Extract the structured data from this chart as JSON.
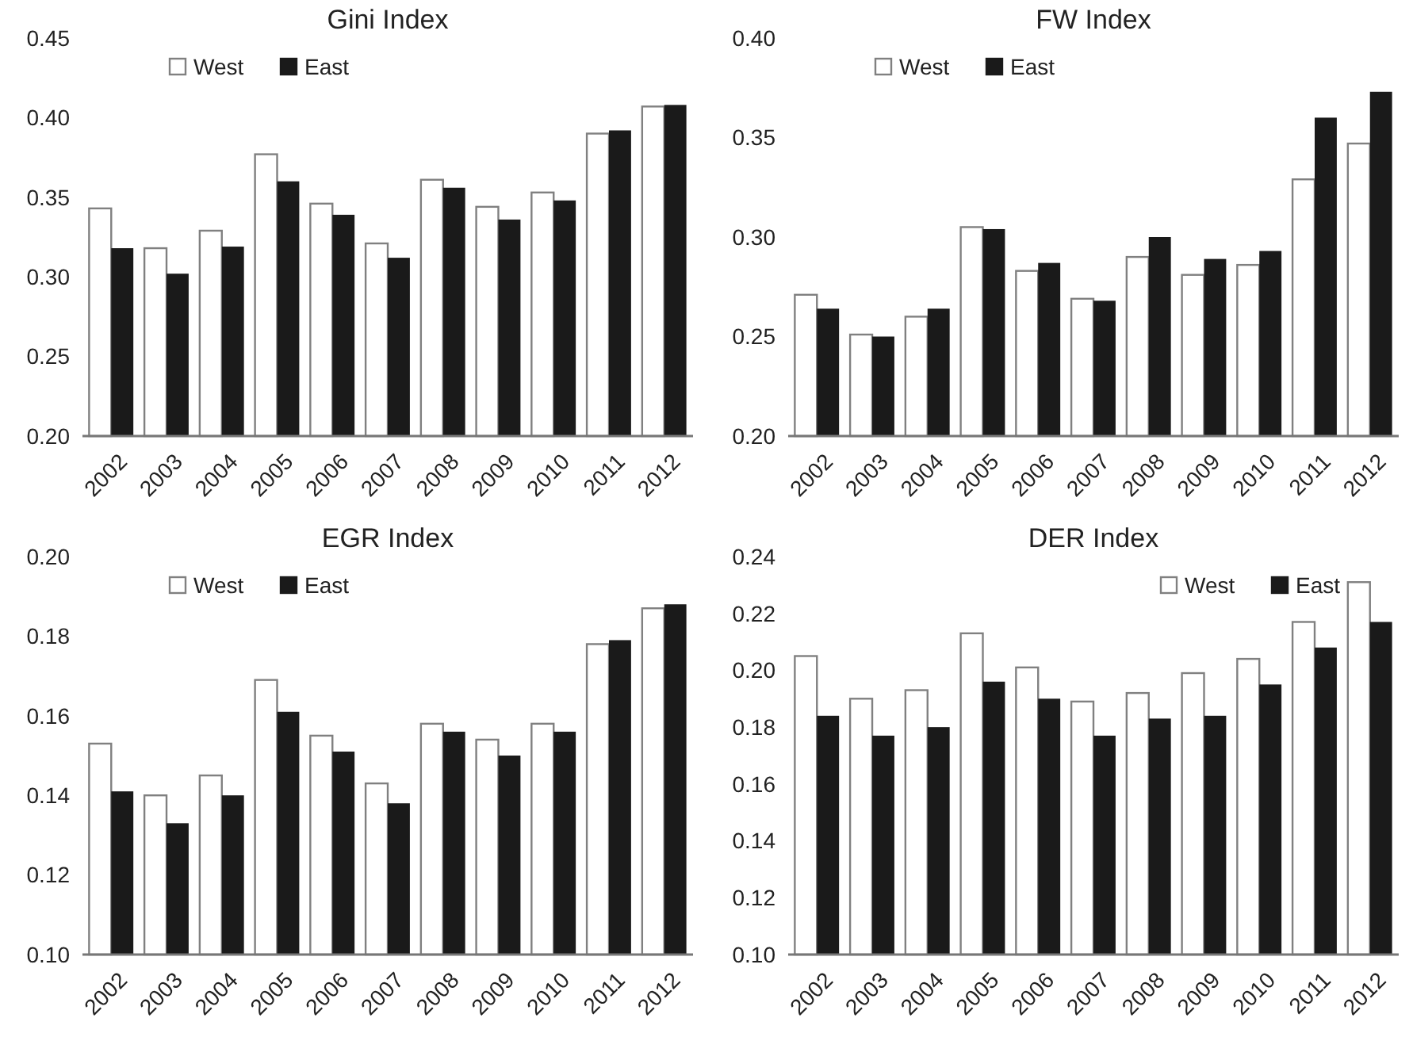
{
  "chart_data": [
    {
      "type": "bar",
      "title": "Gini Index",
      "categories": [
        "2002",
        "2003",
        "2004",
        "2005",
        "2006",
        "2007",
        "2008",
        "2009",
        "2010",
        "2011",
        "2012"
      ],
      "series": [
        {
          "name": "West",
          "color": "#ffffff",
          "values": [
            0.343,
            0.318,
            0.329,
            0.377,
            0.346,
            0.321,
            0.361,
            0.344,
            0.353,
            0.39,
            0.407
          ]
        },
        {
          "name": "East",
          "color": "#1a1a1a",
          "values": [
            0.318,
            0.302,
            0.319,
            0.36,
            0.339,
            0.312,
            0.356,
            0.336,
            0.348,
            0.392,
            0.408
          ]
        }
      ],
      "ylim": [
        0.2,
        0.45
      ],
      "yticks": [
        {
          "value": 0.2,
          "label": "0.20"
        },
        {
          "value": 0.25,
          "label": "0.25"
        },
        {
          "value": 0.3,
          "label": "0.30"
        },
        {
          "value": 0.35,
          "label": "0.35"
        },
        {
          "value": 0.4,
          "label": "0.40"
        },
        {
          "value": 0.45,
          "label": "0.45"
        }
      ],
      "grid": false,
      "legend": "top left"
    },
    {
      "type": "bar",
      "title": "FW Index",
      "categories": [
        "2002",
        "2003",
        "2004",
        "2005",
        "2006",
        "2007",
        "2008",
        "2009",
        "2010",
        "2011",
        "2012"
      ],
      "series": [
        {
          "name": "West",
          "color": "#ffffff",
          "values": [
            0.271,
            0.251,
            0.26,
            0.305,
            0.283,
            0.269,
            0.29,
            0.281,
            0.286,
            0.329,
            0.347
          ]
        },
        {
          "name": "East",
          "color": "#1a1a1a",
          "values": [
            0.264,
            0.25,
            0.264,
            0.304,
            0.287,
            0.268,
            0.3,
            0.289,
            0.293,
            0.36,
            0.373
          ]
        }
      ],
      "ylim": [
        0.2,
        0.4
      ],
      "yticks": [
        {
          "value": 0.2,
          "label": "0.20"
        },
        {
          "value": 0.25,
          "label": "0.25"
        },
        {
          "value": 0.3,
          "label": "0.30"
        },
        {
          "value": 0.35,
          "label": "0.35"
        },
        {
          "value": 0.4,
          "label": "0.40"
        }
      ],
      "grid": false,
      "legend": "top left"
    },
    {
      "type": "bar",
      "title": "EGR Index",
      "categories": [
        "2002",
        "2003",
        "2004",
        "2005",
        "2006",
        "2007",
        "2008",
        "2009",
        "2010",
        "2011",
        "2012"
      ],
      "series": [
        {
          "name": "West",
          "color": "#ffffff",
          "values": [
            0.153,
            0.14,
            0.145,
            0.169,
            0.155,
            0.143,
            0.158,
            0.154,
            0.158,
            0.178,
            0.187
          ]
        },
        {
          "name": "East",
          "color": "#1a1a1a",
          "values": [
            0.141,
            0.133,
            0.14,
            0.161,
            0.151,
            0.138,
            0.156,
            0.15,
            0.156,
            0.179,
            0.188
          ]
        }
      ],
      "ylim": [
        0.1,
        0.2
      ],
      "yticks": [
        {
          "value": 0.1,
          "label": "0.10"
        },
        {
          "value": 0.12,
          "label": "0.12"
        },
        {
          "value": 0.14,
          "label": "0.14"
        },
        {
          "value": 0.16,
          "label": "0.16"
        },
        {
          "value": 0.18,
          "label": "0.18"
        },
        {
          "value": 0.2,
          "label": "0.20"
        }
      ],
      "grid": false,
      "legend": "top left"
    },
    {
      "type": "bar",
      "title": "DER Index",
      "categories": [
        "2002",
        "2003",
        "2004",
        "2005",
        "2006",
        "2007",
        "2008",
        "2009",
        "2010",
        "2011",
        "2012"
      ],
      "series": [
        {
          "name": "West",
          "color": "#ffffff",
          "values": [
            0.205,
            0.19,
            0.193,
            0.213,
            0.201,
            0.189,
            0.192,
            0.199,
            0.204,
            0.217,
            0.231
          ]
        },
        {
          "name": "East",
          "color": "#1a1a1a",
          "values": [
            0.184,
            0.177,
            0.18,
            0.196,
            0.19,
            0.177,
            0.183,
            0.184,
            0.195,
            0.208,
            0.217
          ]
        }
      ],
      "ylim": [
        0.1,
        0.24
      ],
      "yticks": [
        {
          "value": 0.1,
          "label": "0.10"
        },
        {
          "value": 0.12,
          "label": "0.12"
        },
        {
          "value": 0.14,
          "label": "0.14"
        },
        {
          "value": 0.16,
          "label": "0.16"
        },
        {
          "value": 0.18,
          "label": "0.18"
        },
        {
          "value": 0.2,
          "label": "0.20"
        },
        {
          "value": 0.22,
          "label": "0.22"
        },
        {
          "value": 0.24,
          "label": "0.24"
        }
      ],
      "grid": false,
      "legend": "top right"
    }
  ]
}
